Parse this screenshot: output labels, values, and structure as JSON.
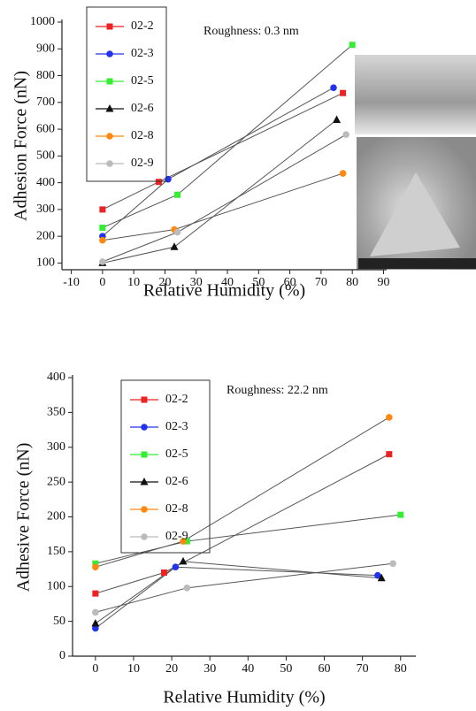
{
  "chart_data": [
    {
      "type": "line",
      "annotation": "Roughness: 0.3 nm",
      "xlabel": "Relative Humidity (%)",
      "ylabel": "Adhesion Force (nN)",
      "xlim": [
        -13,
        91
      ],
      "xticks": [
        -10,
        0,
        10,
        20,
        30,
        40,
        50,
        60,
        70,
        80,
        90
      ],
      "ylim": [
        75,
        1000
      ],
      "yticks": [
        100,
        200,
        300,
        400,
        500,
        600,
        700,
        800,
        900,
        1000
      ],
      "series": [
        {
          "name": "02-2",
          "color": "#ee2222",
          "marker": "square",
          "x": [
            0,
            18,
            77
          ],
          "values": [
            300,
            403,
            735
          ]
        },
        {
          "name": "02-3",
          "color": "#2233ee",
          "marker": "circle",
          "x": [
            0,
            21,
            74
          ],
          "values": [
            200,
            413,
            755
          ]
        },
        {
          "name": "02-5",
          "color": "#33ee33",
          "marker": "square",
          "x": [
            0,
            24,
            80
          ],
          "values": [
            232,
            355,
            915
          ]
        },
        {
          "name": "02-6",
          "color": "#111111",
          "marker": "triangle",
          "x": [
            0,
            23,
            75
          ],
          "values": [
            100,
            160,
            635
          ]
        },
        {
          "name": "02-8",
          "color": "#ff8811",
          "marker": "circle",
          "x": [
            0,
            23,
            77
          ],
          "values": [
            185,
            225,
            435
          ]
        },
        {
          "name": "02-9",
          "color": "#bbbbbb",
          "marker": "circle",
          "x": [
            0,
            24,
            78
          ],
          "values": [
            105,
            215,
            580
          ]
        }
      ]
    },
    {
      "type": "line",
      "annotation": "Roughness: 22.2 nm",
      "xlabel": "Relative Humidity (%)",
      "ylabel": "Adhesive Force (nN)",
      "xlim": [
        -6,
        84
      ],
      "xticks": [
        0,
        10,
        20,
        30,
        40,
        50,
        60,
        70,
        80
      ],
      "ylim": [
        0,
        400
      ],
      "yticks": [
        0,
        50,
        100,
        150,
        200,
        250,
        300,
        350,
        400
      ],
      "series": [
        {
          "name": "02-2",
          "color": "#ee2222",
          "marker": "square",
          "x": [
            0,
            18,
            77
          ],
          "values": [
            90,
            120,
            290
          ]
        },
        {
          "name": "02-3",
          "color": "#2233ee",
          "marker": "circle",
          "x": [
            0,
            21,
            74
          ],
          "values": [
            40,
            128,
            116
          ]
        },
        {
          "name": "02-5",
          "color": "#33ee33",
          "marker": "square",
          "x": [
            0,
            24,
            80
          ],
          "values": [
            133,
            165,
            203
          ]
        },
        {
          "name": "02-6",
          "color": "#111111",
          "marker": "triangle",
          "x": [
            0,
            23,
            75
          ],
          "values": [
            47,
            136,
            112
          ]
        },
        {
          "name": "02-8",
          "color": "#ff8811",
          "marker": "circle",
          "x": [
            0,
            23,
            77
          ],
          "values": [
            128,
            165,
            343
          ]
        },
        {
          "name": "02-9",
          "color": "#bbbbbb",
          "marker": "circle",
          "x": [
            0,
            24,
            78
          ],
          "values": [
            63,
            98,
            133
          ]
        }
      ]
    }
  ]
}
